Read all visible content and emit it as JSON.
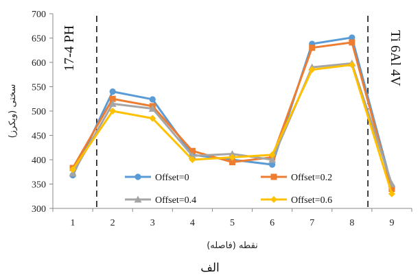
{
  "chart_data": {
    "type": "line",
    "xlabel": "نقطه (فاصله)",
    "ylabel": "سختی (ویکرز)",
    "categories": [
      "1",
      "2",
      "3",
      "4",
      "5",
      "6",
      "7",
      "8",
      "9"
    ],
    "ylim": [
      300,
      700
    ],
    "yticks": [
      "300",
      "350",
      "400",
      "450",
      "500",
      "550",
      "600",
      "650",
      "700"
    ],
    "grid": false,
    "legend_position": "lower-center",
    "series": [
      {
        "name": "Offset=0",
        "color": "#5b9bd5",
        "marker": "circle",
        "values": [
          368,
          540,
          524,
          410,
          400,
          390,
          638,
          651,
          345
        ]
      },
      {
        "name": "Offset=0.2",
        "color": "#ed7d31",
        "marker": "square",
        "values": [
          383,
          525,
          510,
          418,
          395,
          405,
          630,
          641,
          340
        ]
      },
      {
        "name": "Offset=0.4",
        "color": "#a5a5a5",
        "marker": "triangle",
        "values": [
          372,
          515,
          505,
          408,
          412,
          400,
          590,
          598,
          350
        ]
      },
      {
        "name": "Offset=0.6",
        "color": "#ffc000",
        "marker": "diamond",
        "values": [
          380,
          500,
          485,
          400,
          405,
          410,
          585,
          595,
          330
        ]
      }
    ],
    "annotations": [
      {
        "text": "17-4 PH"
      },
      {
        "text": "Ti 6Al 4V"
      }
    ],
    "dividers_at_x": [
      1.6,
      8.4
    ]
  },
  "caption": "الف"
}
